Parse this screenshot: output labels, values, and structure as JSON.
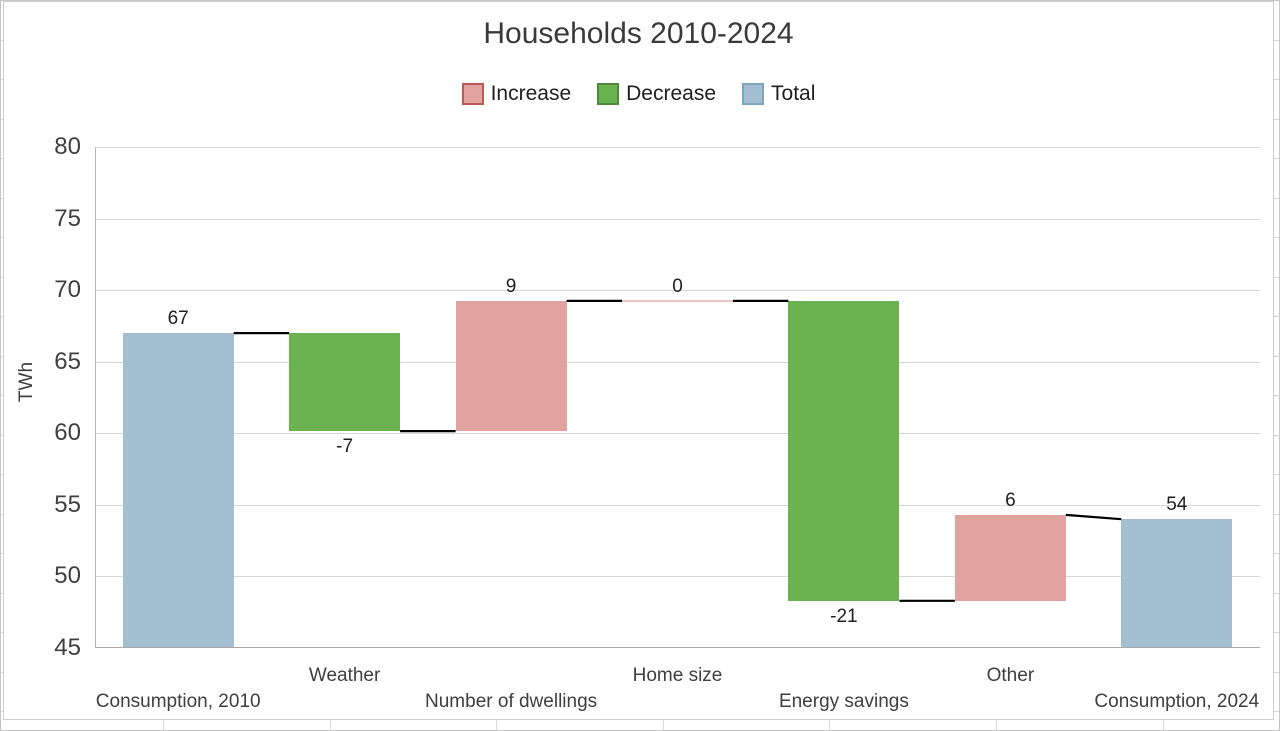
{
  "chart_data": {
    "type": "bar",
    "subtype": "waterfall",
    "title": "Households 2010-2024",
    "ylabel": "TWh",
    "xlabel": "",
    "ylim": [
      45,
      80
    ],
    "yticks": [
      80,
      75,
      70,
      65,
      60,
      55,
      50,
      45
    ],
    "grid": true,
    "legend_position": "top-center",
    "legend": [
      {
        "label": "Increase",
        "fill": "#e2a2a0",
        "border": "#bc5955"
      },
      {
        "label": "Decrease",
        "fill": "#6bb351",
        "border": "#4b8a39"
      },
      {
        "label": "Total",
        "fill": "#a4bfd2",
        "border": "#7fa4bd"
      }
    ],
    "categories": [
      "Consumption, 2010",
      "Weather",
      "Number of dwellings",
      "Home size",
      "Energy savings",
      "Other",
      "Consumption, 2024"
    ],
    "values": [
      67,
      -7,
      9,
      0,
      -21,
      6,
      54
    ],
    "bars": [
      {
        "category": "Consumption, 2010",
        "series": "Total",
        "label": "67",
        "start": 45,
        "end": 67,
        "label_side": "above",
        "tick_row": "lower"
      },
      {
        "category": "Weather",
        "series": "Decrease",
        "label": "-7",
        "start": 67,
        "end": 60.15,
        "label_side": "below",
        "tick_row": "upper"
      },
      {
        "category": "Number of dwellings",
        "series": "Increase",
        "label": "9",
        "start": 60.15,
        "end": 69.25,
        "label_side": "above",
        "tick_row": "lower"
      },
      {
        "category": "Home size",
        "series": "Increase",
        "label": "0",
        "start": 69.25,
        "end": 69.25,
        "label_side": "above",
        "tick_row": "upper"
      },
      {
        "category": "Energy savings",
        "series": "Decrease",
        "label": "-21",
        "start": 69.25,
        "end": 48.3,
        "label_side": "below",
        "tick_row": "lower"
      },
      {
        "category": "Other",
        "series": "Increase",
        "label": "6",
        "start": 48.3,
        "end": 54.3,
        "label_side": "above",
        "tick_row": "upper"
      },
      {
        "category": "Consumption, 2024",
        "series": "Total",
        "label": "54",
        "start": 45,
        "end": 54,
        "label_side": "above",
        "tick_row": "lower"
      }
    ],
    "connector_color": "#000000",
    "zero_bar_color": "#efc6c5"
  }
}
